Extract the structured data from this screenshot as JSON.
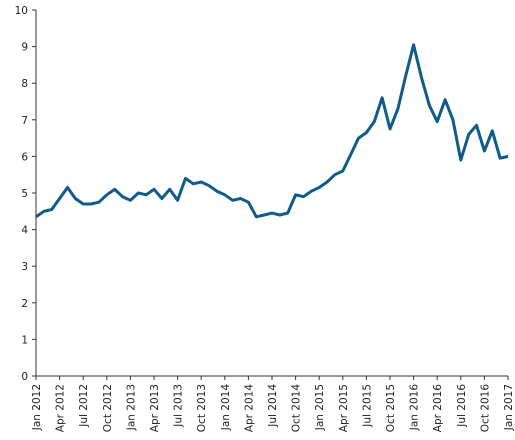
{
  "chart_data": {
    "type": "line",
    "categories": [
      "Jan 2012",
      null,
      null,
      "Apr 2012",
      null,
      null,
      "Jul 2012",
      null,
      null,
      "Oct 2012",
      null,
      null,
      "Jan 2013",
      null,
      null,
      "Apr 2013",
      null,
      null,
      "Jul 2013",
      null,
      null,
      "Oct 2013",
      null,
      null,
      "Jan 2014",
      null,
      null,
      "Apr 2014",
      null,
      null,
      "Jul 2014",
      null,
      null,
      "Oct 2014",
      null,
      null,
      "Jan 2015",
      null,
      null,
      "Apr 2015",
      null,
      null,
      "Jul 2015",
      null,
      null,
      "Oct 2015",
      null,
      null,
      "Jan 2016",
      null,
      null,
      "Apr 2016",
      null,
      null,
      "Jul 2016",
      null,
      null,
      "Oct 2016",
      null,
      null,
      "Jan 2017"
    ],
    "series": [
      {
        "color": "#0f5b8c",
        "values": [
          4.35,
          4.5,
          4.55,
          4.85,
          5.15,
          4.85,
          4.7,
          4.7,
          4.75,
          4.95,
          5.1,
          4.9,
          4.8,
          5.0,
          4.95,
          5.1,
          4.85,
          5.1,
          4.8,
          5.4,
          5.25,
          5.3,
          5.2,
          5.05,
          4.95,
          4.8,
          4.85,
          4.75,
          4.35,
          4.4,
          4.45,
          4.4,
          4.45,
          4.95,
          4.9,
          5.05,
          5.15,
          5.3,
          5.5,
          5.6,
          6.05,
          6.5,
          6.65,
          6.95,
          7.6,
          6.75,
          7.3,
          8.2,
          9.05,
          8.15,
          7.4,
          6.95,
          7.55,
          7.0,
          5.9,
          6.6,
          6.85,
          6.15,
          6.7,
          5.95,
          6.0
        ]
      }
    ],
    "ylim": [
      0,
      10
    ],
    "yticks": [
      0,
      1,
      2,
      3,
      4,
      5,
      6,
      7,
      8,
      9,
      10
    ]
  }
}
